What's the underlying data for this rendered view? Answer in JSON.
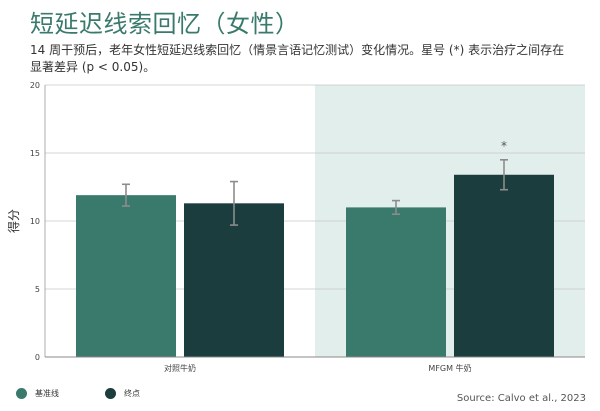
{
  "title": "短延迟线索回忆（女性）",
  "subtitle": "14 周干预后，老年女性短延迟线索回忆（情景言语记忆测试）变化情况。星号 (*) 表示治疗之间存在显著差异 (p < 0.05)。",
  "source": "Source: Calvo et al., 2023",
  "colors": {
    "baseline": "#3a7a6c",
    "endpoint": "#1b3d3d",
    "highlight_bg": "#e2eeec"
  },
  "chart_data": {
    "type": "bar",
    "categories": [
      "对照牛奶",
      "MFGM 牛奶"
    ],
    "series": [
      {
        "name": "基准线",
        "values": [
          11.9,
          11.0
        ],
        "error": [
          0.8,
          0.5
        ]
      },
      {
        "name": "终点",
        "values": [
          11.3,
          13.4
        ],
        "error": [
          1.6,
          1.1
        ]
      }
    ],
    "ylabel": "得分",
    "ylim": [
      0,
      20
    ],
    "yticks": [
      0,
      5,
      10,
      15,
      20
    ],
    "grid": true,
    "highlighted_category": "MFGM 牛奶",
    "annotations": [
      {
        "category": "MFGM 牛奶",
        "series": "终点",
        "text": "*"
      }
    ],
    "legend_position": "bottom-left"
  }
}
